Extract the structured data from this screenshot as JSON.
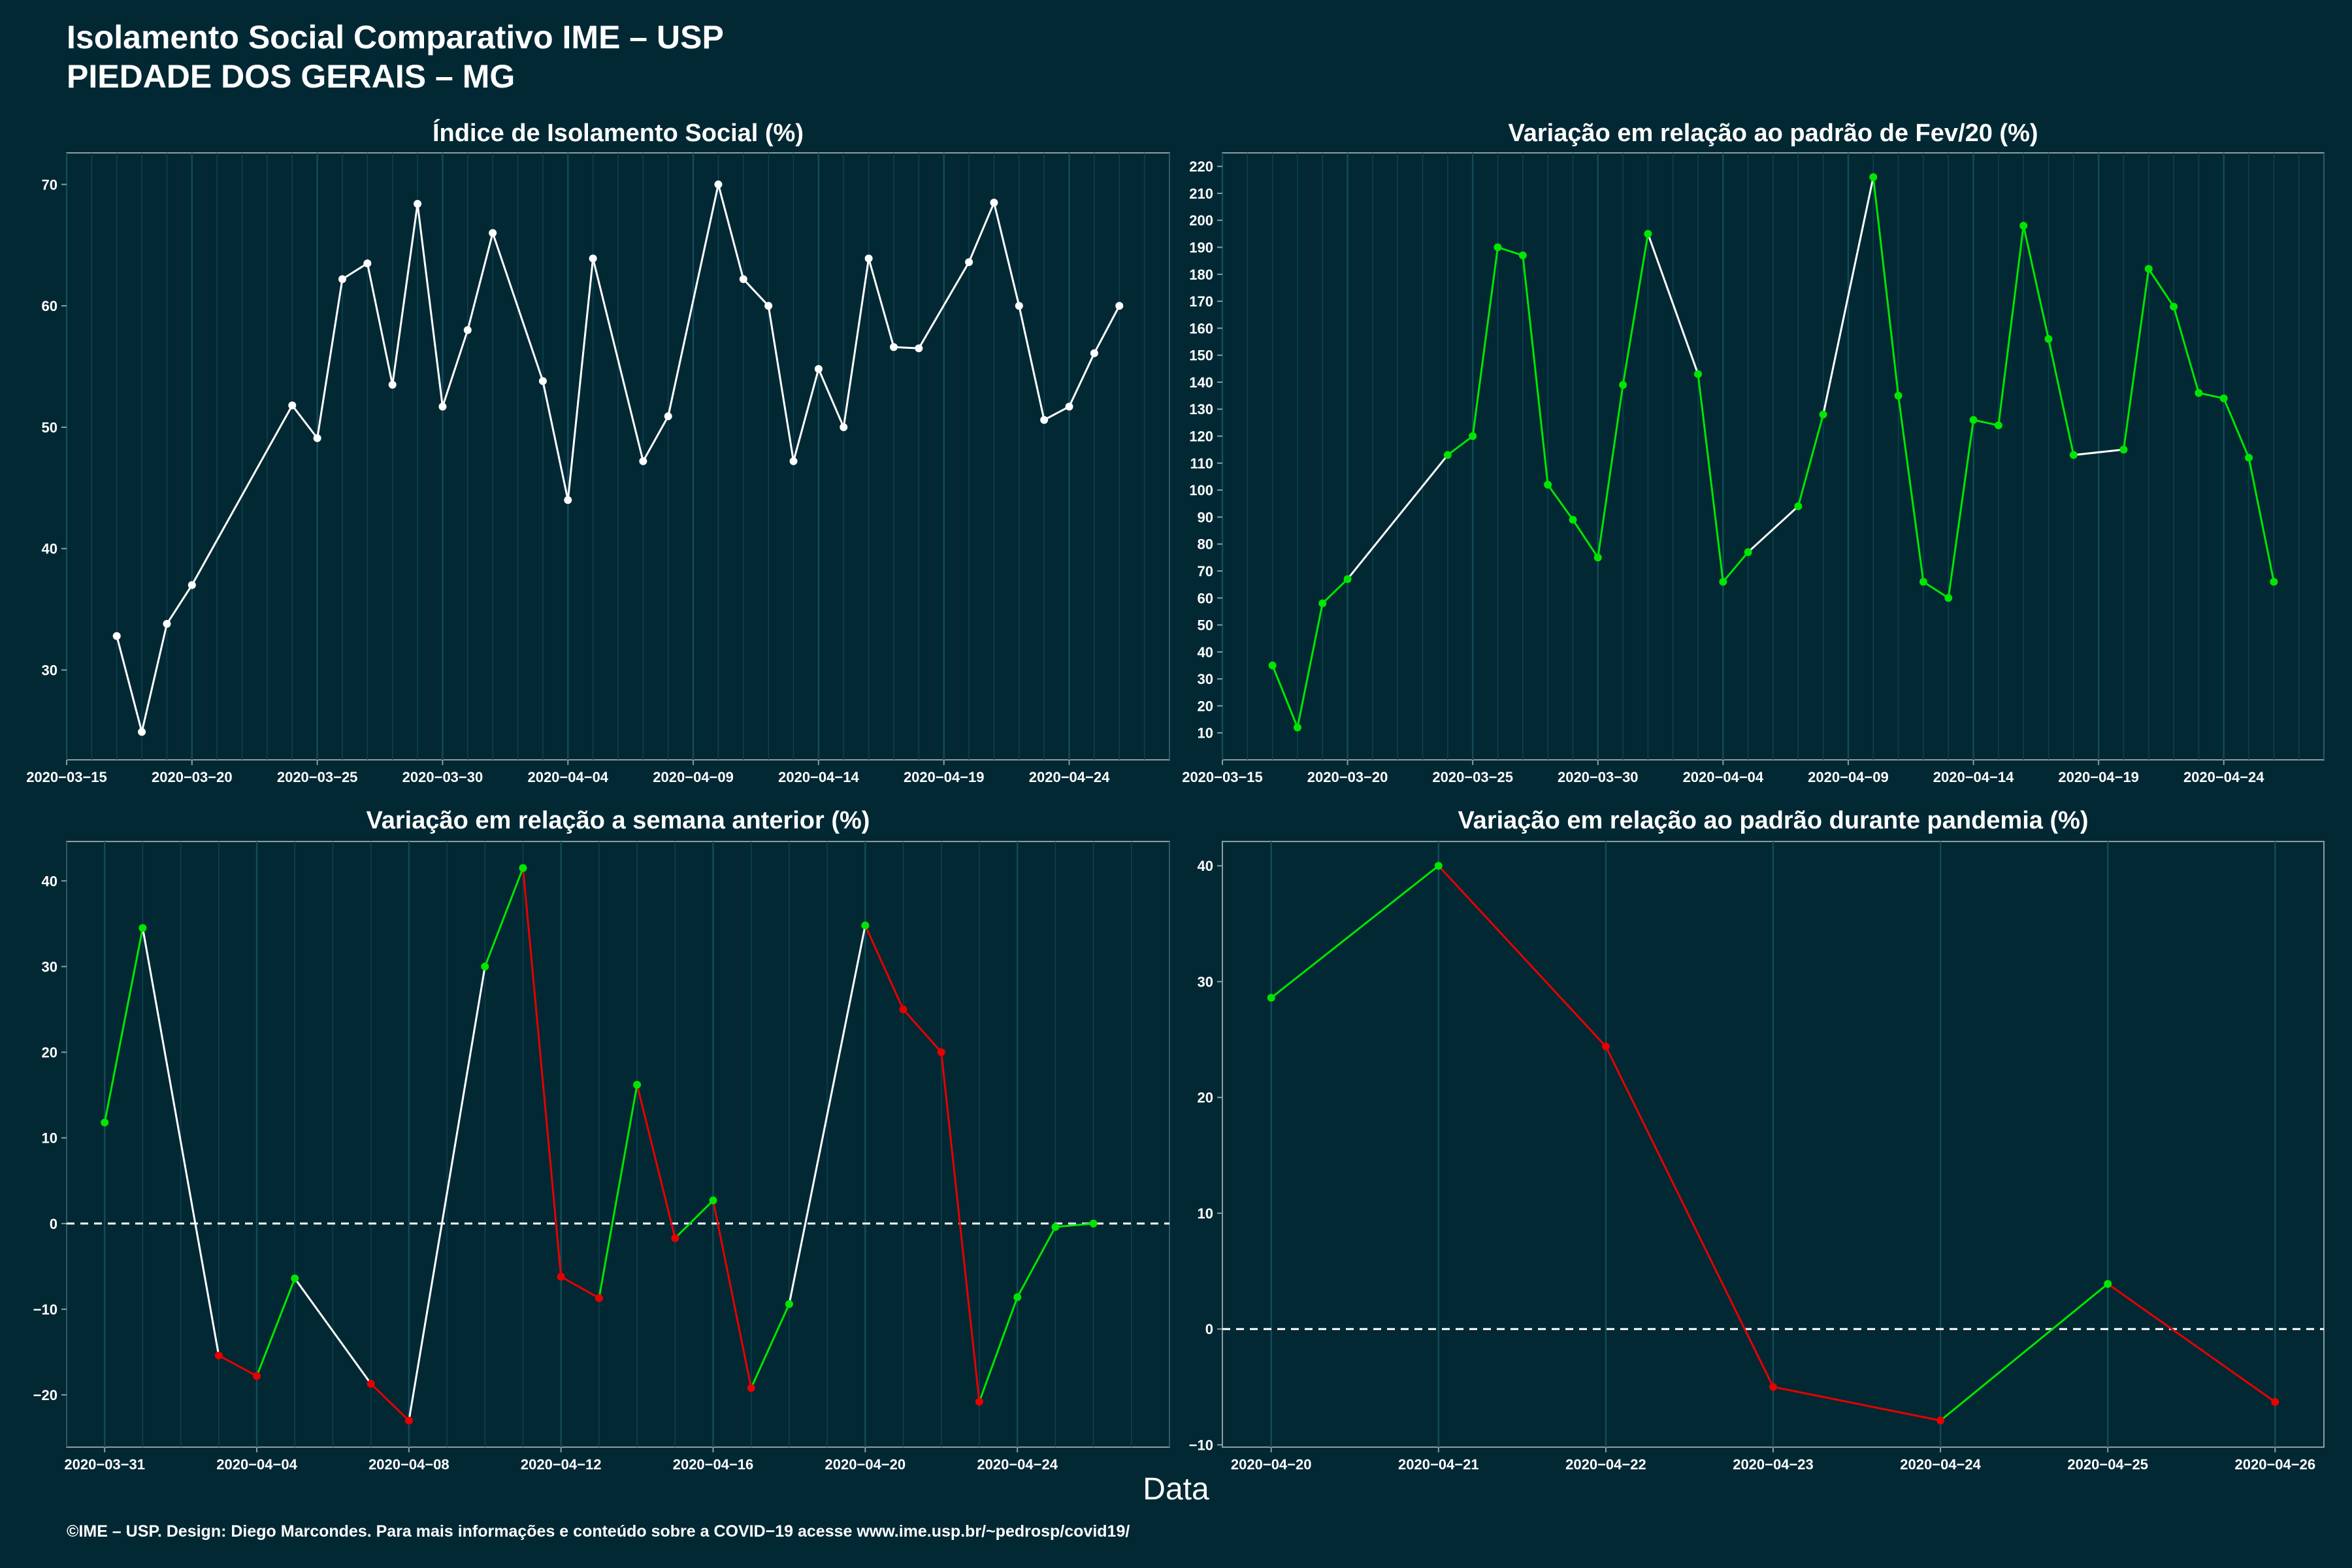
{
  "header": {
    "title": "Isolamento Social Comparativo IME – USP",
    "subtitle": "PIEDADE DOS GERAIS – MG"
  },
  "x_axis_title": "Data",
  "footer": "©IME – USP. Design: Diego Marcondes. Para mais informações e conteúdo sobre a COVID−19 acesse www.ime.usp.br/~pedrosp/covid19/",
  "colors": {
    "background": "#022833",
    "neutral": "#ffffff",
    "increase": "#00e600",
    "decrease": "#e60000",
    "grid": "#0e4250"
  },
  "chart_data": [
    {
      "type": "line",
      "title": "Índice de Isolamento Social (%)",
      "xlim": [
        "2020-03-15",
        "2020-04-28"
      ],
      "ylim": [
        22.6,
        72.6
      ],
      "x_ticks": [
        "2020−03−15",
        "2020−03−20",
        "2020−03−25",
        "2020−03−30",
        "2020−04−04",
        "2020−04−09",
        "2020−04−14",
        "2020−04−19",
        "2020−04−24"
      ],
      "y_ticks": [
        30,
        40,
        50,
        60,
        70
      ],
      "color_mode": "neutral",
      "points": [
        [
          "2020-03-17",
          32.8
        ],
        [
          "2020-03-18",
          24.9
        ],
        [
          "2020-03-19",
          33.8
        ],
        [
          "2020-03-20",
          37.0
        ],
        [
          "2020-03-24",
          51.8
        ],
        [
          "2020-03-25",
          49.1
        ],
        [
          "2020-03-26",
          62.2
        ],
        [
          "2020-03-27",
          63.5
        ],
        [
          "2020-03-28",
          53.5
        ],
        [
          "2020-03-29",
          68.4
        ],
        [
          "2020-03-30",
          51.7
        ],
        [
          "2020-03-31",
          58.0
        ],
        [
          "2020-04-01",
          66.0
        ],
        [
          "2020-04-03",
          53.8
        ],
        [
          "2020-04-04",
          44.0
        ],
        [
          "2020-04-05",
          63.9
        ],
        [
          "2020-04-07",
          47.2
        ],
        [
          "2020-04-08",
          50.9
        ],
        [
          "2020-04-10",
          70.0
        ],
        [
          "2020-04-11",
          62.2
        ],
        [
          "2020-04-12",
          60.0
        ],
        [
          "2020-04-13",
          47.2
        ],
        [
          "2020-04-14",
          54.8
        ],
        [
          "2020-04-15",
          50.0
        ],
        [
          "2020-04-16",
          63.9
        ],
        [
          "2020-04-17",
          56.6
        ],
        [
          "2020-04-18",
          56.5
        ],
        [
          "2020-04-20",
          63.6
        ],
        [
          "2020-04-21",
          68.5
        ],
        [
          "2020-04-22",
          60.0
        ],
        [
          "2020-04-23",
          50.6
        ],
        [
          "2020-04-24",
          51.7
        ],
        [
          "2020-04-25",
          56.1
        ],
        [
          "2020-04-26",
          60.0
        ]
      ]
    },
    {
      "type": "line",
      "title": "Variação em relação ao padrão de Fev/20 (%)",
      "xlim": [
        "2020-03-15",
        "2020-04-28"
      ],
      "ylim": [
        0,
        225
      ],
      "x_ticks": [
        "2020−03−15",
        "2020−03−20",
        "2020−03−25",
        "2020−03−30",
        "2020−04−04",
        "2020−04−09",
        "2020−04−14",
        "2020−04−19",
        "2020−04−24"
      ],
      "y_ticks": [
        10,
        20,
        30,
        40,
        50,
        60,
        70,
        80,
        90,
        100,
        110,
        120,
        130,
        140,
        150,
        160,
        170,
        180,
        190,
        200,
        210,
        220
      ],
      "color_mode": "daily",
      "points": [
        [
          "2020-03-17",
          35
        ],
        [
          "2020-03-18",
          12
        ],
        [
          "2020-03-19",
          58
        ],
        [
          "2020-03-20",
          67
        ],
        [
          "2020-03-24",
          113
        ],
        [
          "2020-03-25",
          120
        ],
        [
          "2020-03-26",
          190
        ],
        [
          "2020-03-27",
          187
        ],
        [
          "2020-03-28",
          102
        ],
        [
          "2020-03-29",
          89
        ],
        [
          "2020-03-30",
          75
        ],
        [
          "2020-03-31",
          139
        ],
        [
          "2020-04-01",
          195
        ],
        [
          "2020-04-03",
          143
        ],
        [
          "2020-04-04",
          66
        ],
        [
          "2020-04-05",
          77
        ],
        [
          "2020-04-07",
          94
        ],
        [
          "2020-04-08",
          128
        ],
        [
          "2020-04-10",
          216
        ],
        [
          "2020-04-11",
          135
        ],
        [
          "2020-04-12",
          66
        ],
        [
          "2020-04-13",
          60
        ],
        [
          "2020-04-14",
          126
        ],
        [
          "2020-04-15",
          124
        ],
        [
          "2020-04-16",
          198
        ],
        [
          "2020-04-17",
          156
        ],
        [
          "2020-04-18",
          113
        ],
        [
          "2020-04-20",
          115
        ],
        [
          "2020-04-21",
          182
        ],
        [
          "2020-04-22",
          168
        ],
        [
          "2020-04-23",
          136
        ],
        [
          "2020-04-24",
          134
        ],
        [
          "2020-04-25",
          112
        ],
        [
          "2020-04-26",
          66
        ]
      ]
    },
    {
      "type": "line",
      "title": "Variação em relação a semana anterior (%)",
      "xlim": [
        "2020-03-30",
        "2020-04-28"
      ],
      "ylim": [
        -26.1,
        44.6
      ],
      "x_ticks": [
        "2020−03−31",
        "2020−04−04",
        "2020−04−08",
        "2020−04−12",
        "2020−04−16",
        "2020−04−20",
        "2020−04−24"
      ],
      "y_ticks": [
        -20,
        -10,
        0,
        10,
        20,
        30,
        40
      ],
      "y_tick_labels": [
        "−20",
        "−10",
        "0",
        "10",
        "20",
        "30",
        "40"
      ],
      "zero_line": true,
      "color_mode": "sign",
      "points": [
        [
          "2020-03-31",
          11.8
        ],
        [
          "2020-04-01",
          34.5
        ],
        [
          "2020-04-03",
          -15.4
        ],
        [
          "2020-04-04",
          -17.8
        ],
        [
          "2020-04-05",
          -6.4
        ],
        [
          "2020-04-07",
          -18.7
        ],
        [
          "2020-04-08",
          -23.0
        ],
        [
          "2020-04-10",
          30.0
        ],
        [
          "2020-04-11",
          41.5
        ],
        [
          "2020-04-12",
          -6.2
        ],
        [
          "2020-04-13",
          -8.7
        ],
        [
          "2020-04-14",
          16.2
        ],
        [
          "2020-04-15",
          -1.7
        ],
        [
          "2020-04-16",
          2.7
        ],
        [
          "2020-04-17",
          -19.2
        ],
        [
          "2020-04-18",
          -9.4
        ],
        [
          "2020-04-20",
          34.8
        ],
        [
          "2020-04-21",
          25.0
        ],
        [
          "2020-04-22",
          20.0
        ],
        [
          "2020-04-23",
          -20.8
        ],
        [
          "2020-04-24",
          -8.6
        ],
        [
          "2020-04-25",
          -0.4
        ],
        [
          "2020-04-26",
          0.0
        ]
      ]
    },
    {
      "type": "line",
      "title": "Variação em relação ao padrão durante pandemia (%)",
      "xlim": [
        "2020-04-19 17:00",
        "2020-04-26 07:00"
      ],
      "ylim": [
        -10.2,
        42.1
      ],
      "x_ticks": [
        "2020−04−20",
        "2020−04−21",
        "2020−04−22",
        "2020−04−23",
        "2020−04−24",
        "2020−04−25",
        "2020−04−26"
      ],
      "y_ticks": [
        -10,
        0,
        10,
        20,
        30,
        40
      ],
      "y_tick_labels": [
        "−10",
        "0",
        "10",
        "20",
        "30",
        "40"
      ],
      "zero_line": true,
      "color_mode": "sign",
      "points": [
        [
          "2020-04-20",
          28.6
        ],
        [
          "2020-04-21",
          40.0
        ],
        [
          "2020-04-22",
          24.4
        ],
        [
          "2020-04-23",
          -5.0
        ],
        [
          "2020-04-24",
          -7.9
        ],
        [
          "2020-04-25",
          3.9
        ],
        [
          "2020-04-26",
          -6.3
        ]
      ]
    }
  ]
}
